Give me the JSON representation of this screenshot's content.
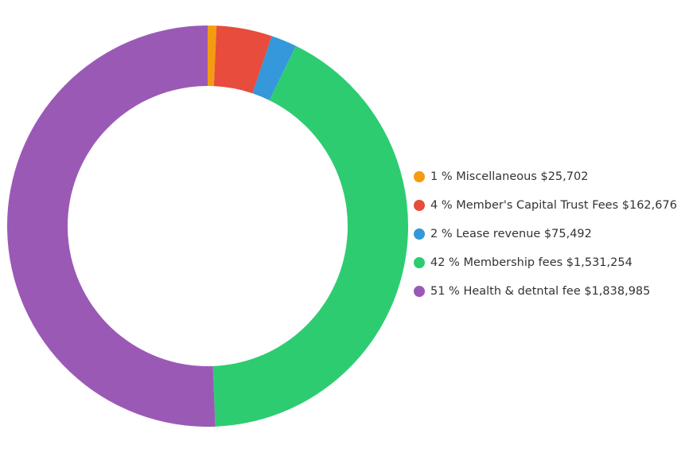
{
  "chart_data": {
    "type": "pie",
    "variant": "donut",
    "legend_position": "right",
    "slices": [
      {
        "percent_label": "1 %",
        "name": "Miscellaneous",
        "value": 25702,
        "value_label": "$25,702",
        "color": "#f39c12"
      },
      {
        "percent_label": "4 %",
        "name": "Member's Capital Trust Fees",
        "value": 162676,
        "value_label": "$162,676",
        "color": "#e74c3c"
      },
      {
        "percent_label": "2 %",
        "name": "Lease revenue",
        "value": 75492,
        "value_label": "$75,492",
        "color": "#3498db"
      },
      {
        "percent_label": "42 %",
        "name": "Membership fees",
        "value": 1531254,
        "value_label": "$1,531,254",
        "color": "#2ecc71"
      },
      {
        "percent_label": "51 %",
        "name": "Health & detntal fee",
        "value": 1838985,
        "value_label": "$1,838,985",
        "color": "#9b59b6"
      }
    ]
  }
}
